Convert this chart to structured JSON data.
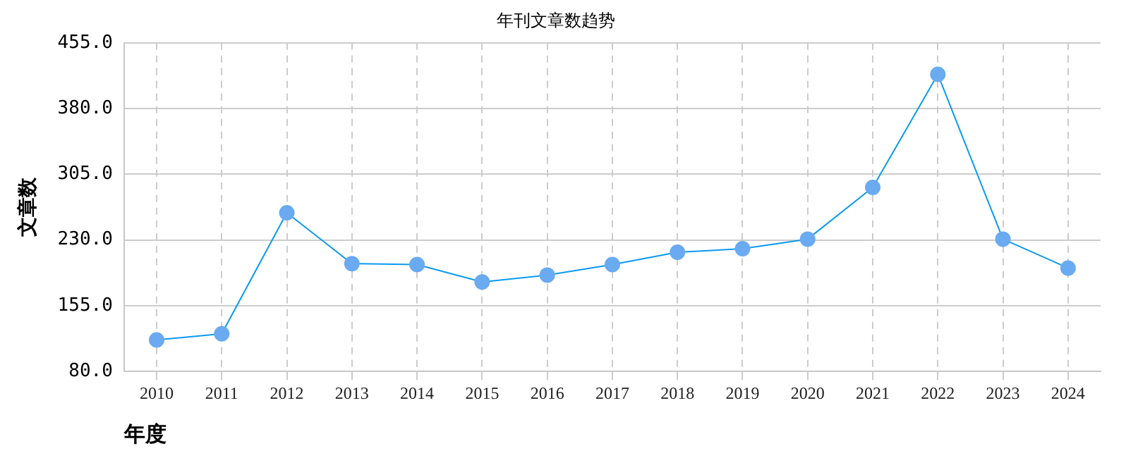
{
  "chart_data": {
    "type": "line",
    "title": "年刊文章数趋势",
    "xlabel": "年度",
    "ylabel": "文章数",
    "categories": [
      "2010",
      "2011",
      "2012",
      "2013",
      "2014",
      "2015",
      "2016",
      "2017",
      "2018",
      "2019",
      "2020",
      "2021",
      "2022",
      "2023",
      "2024"
    ],
    "series": [
      {
        "color": "#0a9af0",
        "values": [
          116,
          123,
          261,
          203,
          202,
          182,
          190,
          202,
          216,
          220,
          231,
          290,
          419,
          231,
          198
        ]
      }
    ],
    "ylim": [
      80,
      455
    ],
    "yticks": [
      {
        "value": 80,
        "label": "80.0"
      },
      {
        "value": 155,
        "label": "155.0"
      },
      {
        "value": 230,
        "label": "230.0"
      },
      {
        "value": 305,
        "label": "305.0"
      },
      {
        "value": 380,
        "label": "380.0"
      },
      {
        "value": 455,
        "label": "455.0"
      }
    ],
    "grid": true,
    "legend": false,
    "marker": "circle",
    "line_style": "solid"
  }
}
